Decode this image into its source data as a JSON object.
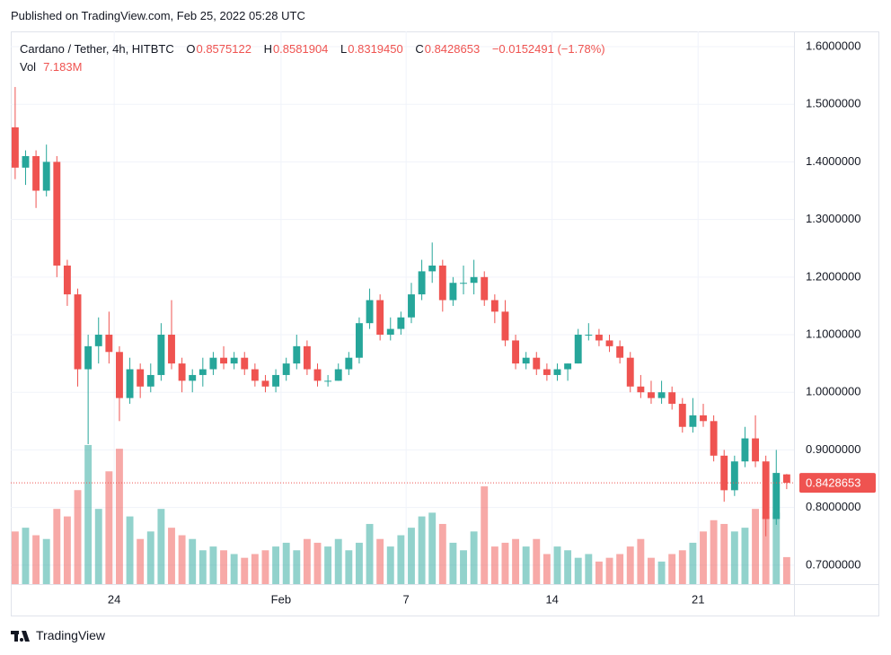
{
  "header": {
    "published": "Published on TradingView.com, Feb 25, 2022 05:28 UTC",
    "brand": "TradingView"
  },
  "chart_data": {
    "type": "candlestick",
    "legend": {
      "symbol": "Cardano / Tether, 4h, HITBTC",
      "open_prefix": "O",
      "open": 0.8575122,
      "high_prefix": "H",
      "high": 0.8581904,
      "low_prefix": "L",
      "low": {
        "value": 0.831945,
        "label": "0.8319450"
      },
      "close_prefix": "C",
      "close": 0.8428653,
      "change": {
        "value": -0.0152491,
        "label": "−0.0152491 (−1.78%)"
      },
      "volume_prefix": "Vol",
      "volume": {
        "value": 7.183,
        "label": "7.183M"
      }
    },
    "x": [
      19.25,
      19.75,
      20.25,
      20.75,
      21.25,
      21.75,
      22.25,
      22.75,
      23.25,
      23.75,
      24.25,
      24.75,
      25.25,
      25.75,
      26.25,
      26.75,
      27.25,
      27.75,
      28.25,
      28.75,
      29.25,
      29.75,
      30.25,
      30.75,
      31.25,
      31.75,
      32.25,
      32.75,
      33.25,
      33.75,
      34.25,
      34.75,
      35.25,
      35.75,
      36.25,
      36.75,
      37.25,
      37.75,
      38.25,
      38.75,
      39.25,
      39.75,
      40.25,
      40.75,
      41.25,
      41.75,
      42.25,
      42.75,
      43.25,
      43.75,
      44.25,
      44.75,
      45.25,
      45.75,
      46.25,
      46.75,
      47.25,
      47.75,
      48.25,
      48.75,
      49.25,
      49.75,
      50.25,
      50.75,
      51.25,
      51.75,
      52.25,
      52.75,
      53.25,
      53.75,
      54.25,
      54.75,
      55.25,
      55.75,
      56.25
    ],
    "open": [
      1.46,
      1.39,
      1.41,
      1.35,
      1.4,
      1.22,
      1.17,
      1.04,
      1.08,
      1.1,
      1.07,
      0.99,
      1.04,
      1.01,
      1.03,
      1.1,
      1.05,
      1.02,
      1.03,
      1.04,
      1.06,
      1.05,
      1.06,
      1.04,
      1.02,
      1.01,
      1.03,
      1.05,
      1.08,
      1.04,
      1.02,
      1.02,
      1.04,
      1.06,
      1.12,
      1.16,
      1.1,
      1.11,
      1.13,
      1.17,
      1.21,
      1.22,
      1.16,
      1.19,
      1.19,
      1.2,
      1.16,
      1.14,
      1.09,
      1.05,
      1.06,
      1.04,
      1.03,
      1.04,
      1.05,
      1.1,
      1.1,
      1.09,
      1.08,
      1.06,
      1.01,
      1.0,
      0.99,
      1.0,
      0.98,
      0.94,
      0.96,
      0.95,
      0.89,
      0.83,
      0.88,
      0.92,
      0.88,
      0.78,
      0.8575122
    ],
    "high": [
      1.53,
      1.42,
      1.42,
      1.43,
      1.41,
      1.23,
      1.18,
      1.1,
      1.13,
      1.14,
      1.08,
      1.06,
      1.05,
      1.05,
      1.12,
      1.16,
      1.06,
      1.04,
      1.06,
      1.07,
      1.08,
      1.07,
      1.07,
      1.05,
      1.03,
      1.04,
      1.06,
      1.1,
      1.09,
      1.05,
      1.03,
      1.05,
      1.07,
      1.13,
      1.18,
      1.17,
      1.13,
      1.14,
      1.19,
      1.23,
      1.26,
      1.23,
      1.2,
      1.22,
      1.23,
      1.21,
      1.17,
      1.16,
      1.1,
      1.07,
      1.07,
      1.05,
      1.05,
      1.05,
      1.11,
      1.12,
      1.11,
      1.1,
      1.09,
      1.07,
      1.03,
      1.02,
      1.02,
      1.01,
      0.99,
      0.99,
      0.98,
      0.96,
      0.9,
      0.89,
      0.94,
      0.96,
      0.89,
      0.9,
      0.8581904
    ],
    "low": [
      1.37,
      1.36,
      1.32,
      1.34,
      1.2,
      1.15,
      1.01,
      0.91,
      1.05,
      1.05,
      0.95,
      0.98,
      0.99,
      1.0,
      1.02,
      1.04,
      1.0,
      1.0,
      1.01,
      1.03,
      1.04,
      1.04,
      1.03,
      1.01,
      1.0,
      1.0,
      1.02,
      1.04,
      1.03,
      1.01,
      1.01,
      1.02,
      1.03,
      1.05,
      1.11,
      1.09,
      1.09,
      1.1,
      1.12,
      1.16,
      1.19,
      1.14,
      1.15,
      1.17,
      1.17,
      1.15,
      1.12,
      1.08,
      1.04,
      1.04,
      1.03,
      1.02,
      1.02,
      1.02,
      1.05,
      1.09,
      1.08,
      1.07,
      1.05,
      1.0,
      0.99,
      0.98,
      0.98,
      0.97,
      0.93,
      0.93,
      0.94,
      0.88,
      0.81,
      0.82,
      0.87,
      0.87,
      0.75,
      0.77,
      0.831945
    ],
    "close": [
      1.39,
      1.41,
      1.35,
      1.4,
      1.22,
      1.17,
      1.04,
      1.08,
      1.1,
      1.07,
      0.99,
      1.04,
      1.01,
      1.03,
      1.1,
      1.05,
      1.02,
      1.03,
      1.04,
      1.06,
      1.05,
      1.06,
      1.04,
      1.02,
      1.01,
      1.03,
      1.05,
      1.08,
      1.04,
      1.02,
      1.02,
      1.04,
      1.06,
      1.12,
      1.16,
      1.1,
      1.11,
      1.13,
      1.17,
      1.21,
      1.22,
      1.16,
      1.19,
      1.19,
      1.2,
      1.16,
      1.14,
      1.09,
      1.05,
      1.06,
      1.04,
      1.03,
      1.04,
      1.05,
      1.1,
      1.1,
      1.09,
      1.08,
      1.06,
      1.01,
      1.0,
      0.99,
      1.0,
      0.98,
      0.94,
      0.96,
      0.95,
      0.89,
      0.83,
      0.88,
      0.92,
      0.88,
      0.78,
      0.86,
      0.8428653
    ],
    "volume": [
      14,
      15,
      13,
      12,
      20,
      18,
      25,
      37,
      20,
      30,
      36,
      18,
      12,
      14,
      20,
      15,
      13,
      12,
      9,
      10,
      9,
      8,
      7,
      8,
      9,
      10,
      11,
      9,
      12,
      11,
      10,
      12,
      9,
      11,
      16,
      12,
      10,
      13,
      15,
      18,
      19,
      16,
      11,
      9,
      14,
      26,
      10,
      11,
      12,
      10,
      12,
      8,
      10,
      9,
      7,
      8,
      6,
      7,
      8,
      10,
      12,
      7,
      6,
      8,
      9,
      11,
      14,
      17,
      16,
      14,
      15,
      20,
      18,
      19,
      7.183
    ],
    "up_color": "#26a69a",
    "down_color": "#ef5350",
    "xlim": [
      19.04,
      56.6
    ],
    "xticks": [
      24,
      {
        "value": 32,
        "label": "Feb"
      },
      {
        "value": 38,
        "label": "7"
      },
      {
        "value": 45,
        "label": "14"
      },
      {
        "value": 52,
        "label": "21"
      }
    ],
    "ylim": [
      0.667,
      1.6265
    ],
    "yticks": [
      {
        "value": 0.7,
        "label": "0.7000000"
      },
      {
        "value": 0.8,
        "label": "0.8000000"
      },
      {
        "value": 0.9,
        "label": "0.9000000"
      },
      {
        "value": 1.0,
        "label": "1.0000000"
      },
      {
        "value": 1.1,
        "label": "1.1000000"
      },
      {
        "value": 1.2,
        "label": "1.2000000"
      },
      {
        "value": 1.3,
        "label": "1.3000000"
      },
      {
        "value": 1.4,
        "label": "1.4000000"
      },
      {
        "value": 1.5,
        "label": "1.5000000"
      },
      {
        "value": 1.6,
        "label": "1.6000000"
      }
    ],
    "volume_ylim": [
      0,
      147
    ],
    "grid": true
  }
}
